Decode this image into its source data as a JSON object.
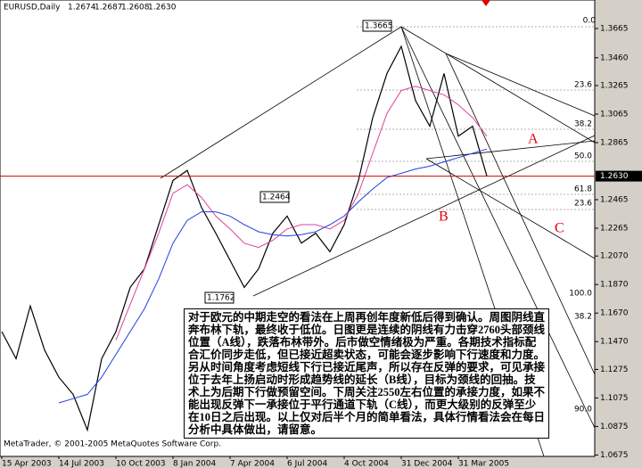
{
  "chart_data": {
    "type": "line",
    "header": [
      "EURUSD,Daily",
      "1.2674",
      "1.2687",
      "1.2608",
      "1.2630"
    ],
    "categories": [
      "15 Apr 2003",
      null,
      null,
      null,
      "14 Jul 2003",
      null,
      null,
      null,
      "10 Oct 2003",
      null,
      null,
      null,
      "8 Jan 2004",
      null,
      null,
      null,
      "7 Apr 2004",
      null,
      null,
      null,
      "6 Jul 2004",
      null,
      null,
      null,
      "4 Oct 2004",
      null,
      null,
      null,
      "31 Dec 2004",
      null,
      null,
      null,
      "31 Mar 2005",
      null,
      null
    ],
    "series": [
      {
        "color": "#000000",
        "values": [
          1.154,
          1.135,
          1.172,
          1.141,
          1.122,
          1.11,
          1.085,
          1.135,
          1.154,
          1.185,
          1.198,
          1.229,
          1.26,
          1.267,
          1.241,
          1.223,
          1.204,
          1.185,
          1.198,
          1.223,
          1.235,
          1.216,
          1.223,
          1.21,
          1.229,
          1.26,
          1.304,
          1.335,
          1.354,
          1.316,
          1.298,
          1.335,
          1.291,
          1.298,
          1.263
        ]
      },
      {
        "color": "#e0409a",
        "values": [
          null,
          null,
          null,
          null,
          null,
          null,
          null,
          null,
          1.148,
          1.173,
          1.198,
          1.223,
          1.251,
          1.257,
          1.248,
          1.235,
          1.226,
          1.216,
          1.213,
          1.218,
          1.226,
          1.229,
          1.229,
          1.226,
          1.232,
          1.251,
          1.279,
          1.307,
          1.323,
          1.326,
          1.323,
          1.32,
          1.313,
          1.304,
          1.291
        ]
      },
      {
        "color": "#2040e0",
        "values": [
          null,
          null,
          null,
          null,
          1.104,
          1.107,
          1.11,
          1.122,
          1.138,
          1.154,
          1.17,
          1.191,
          1.216,
          1.232,
          1.238,
          1.238,
          1.235,
          1.229,
          1.224,
          1.222,
          1.221,
          1.222,
          1.224,
          1.229,
          1.235,
          1.245,
          1.254,
          1.262,
          1.265,
          1.268,
          1.27,
          1.273,
          1.276,
          1.279,
          1.282
        ]
      }
    ],
    "ylim": [
      1.0665,
      1.3865
    ],
    "yticks": [
      1.3665,
      {
        "value": 1.346,
        "label": "1.3460"
      },
      1.3265,
      1.3065,
      1.2865,
      1.2465,
      1.2265,
      {
        "value": 1.207,
        "label": "1.2070"
      },
      {
        "value": 1.187,
        "label": "1.1870"
      },
      {
        "value": 1.167,
        "label": "1.1670"
      },
      {
        "value": 1.147,
        "label": "1.1470"
      },
      1.1275,
      1.1075,
      1.0875,
      1.0675
    ],
    "current_price": {
      "value": 1.263,
      "label": "1.2630"
    },
    "price_boxes": [
      "1.3665",
      "1.2464",
      "1.1762"
    ],
    "fib_labels": [
      "0.0",
      "23.6",
      "38.2",
      "50.0",
      "61.8",
      "23.6",
      "100.0",
      "38.2",
      "90.0"
    ],
    "line_labels": [
      "A",
      "B",
      "C"
    ],
    "copyright": "MetaTrader, © 2001-2005 MetaQuotes Software Corp.",
    "commentary": "对于欧元的中期走空的看法在上周再创年度新低后得到确认。周图阴线直奔布林下轨，最终收于低位。日图更是连续的阴线有力击穿2760头部颈线位置（A线），跌落布林带外。后市做空情绪极为严重。各期技术指标配合汇价同步走低，但已接近超卖状态，可能会逐步影响下行速度和力度。另从时间角度考虑短线下行已接近尾声，所以存在反弹的要求，可见承接位于去年上扬启动时形成趋势线的延长（B线），目标为颈线的回抽。技术上为后期下行做预留空间。下周关注2550左右位置的承接力度，如果不能出现反弹下一承接位于平行通道下轨（C线），而更大级别的反弹至少在10日之后出现。以上仅对后半个月的简单看法，具体行情看法会在每日分析中具体做出，请留意。"
  }
}
